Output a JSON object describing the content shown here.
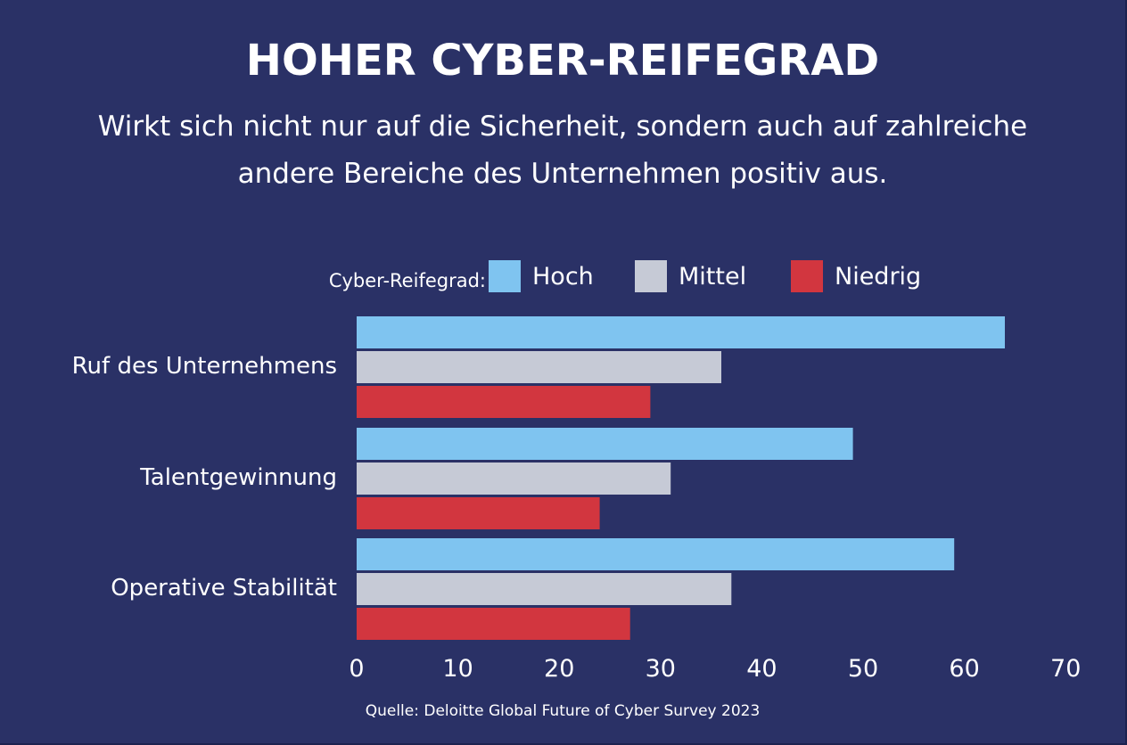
{
  "header": {
    "title": "HOHER CYBER-REIFEGRAD",
    "subtitle_line1": "Wirkt sich nicht nur auf die Sicherheit, sondern auch auf zahlreiche",
    "subtitle_line2": "andere Bereiche des Unternehmen positiv aus."
  },
  "footer": {
    "source": "Quelle: Deloitte Global Future of Cyber Survey 2023"
  },
  "chart_data": {
    "type": "bar",
    "orientation": "horizontal",
    "legend_title": "Cyber-Reifegrad:",
    "legend_placement": "top",
    "categories": [
      "Ruf des Unternehmens",
      "Talentgewinnung",
      "Operative Stabilität"
    ],
    "series": [
      {
        "name": "Hoch",
        "color": "#7fc4f0",
        "values": [
          64,
          49,
          59
        ]
      },
      {
        "name": "Mittel",
        "color": "#c6cad6",
        "values": [
          36,
          31,
          37
        ]
      },
      {
        "name": "Niedrig",
        "color": "#d2363f",
        "values": [
          29,
          24,
          27
        ]
      }
    ],
    "xlim": [
      0,
      70
    ],
    "xticks": [
      "0",
      "10",
      "20",
      "30",
      "40",
      "50",
      "60",
      "70"
    ],
    "grid": false
  }
}
